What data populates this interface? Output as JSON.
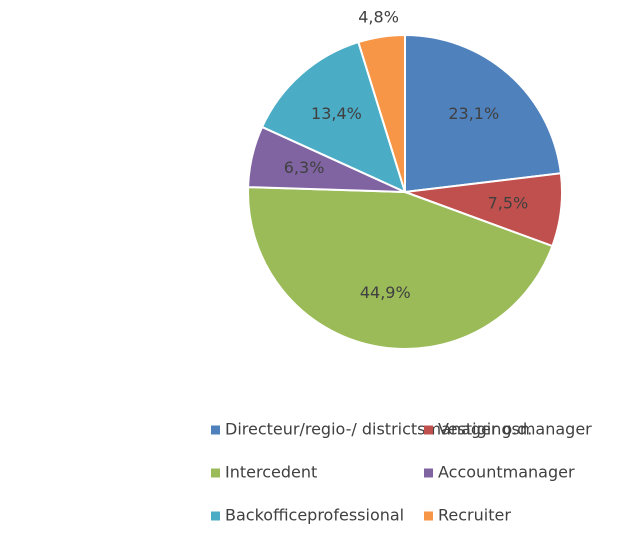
{
  "chart_data": {
    "type": "pie",
    "categories": [
      "Directeur/regio-/ districtsmanager o.d.",
      "Vestigingsmanager",
      "Intercedent",
      "Accountmanager",
      "Backofficeprofessional",
      "Recruiter"
    ],
    "values": [
      23.1,
      7.5,
      44.9,
      6.3,
      13.4,
      4.8
    ],
    "value_labels": [
      "23,1%",
      "7,5%",
      "44,9%",
      "6,3%",
      "13,4%",
      "4,8%"
    ],
    "colors": [
      "#4f81bd",
      "#c0504d",
      "#9bbb59",
      "#8064a2",
      "#4bacc6",
      "#f79646"
    ],
    "legend": "bottom"
  }
}
